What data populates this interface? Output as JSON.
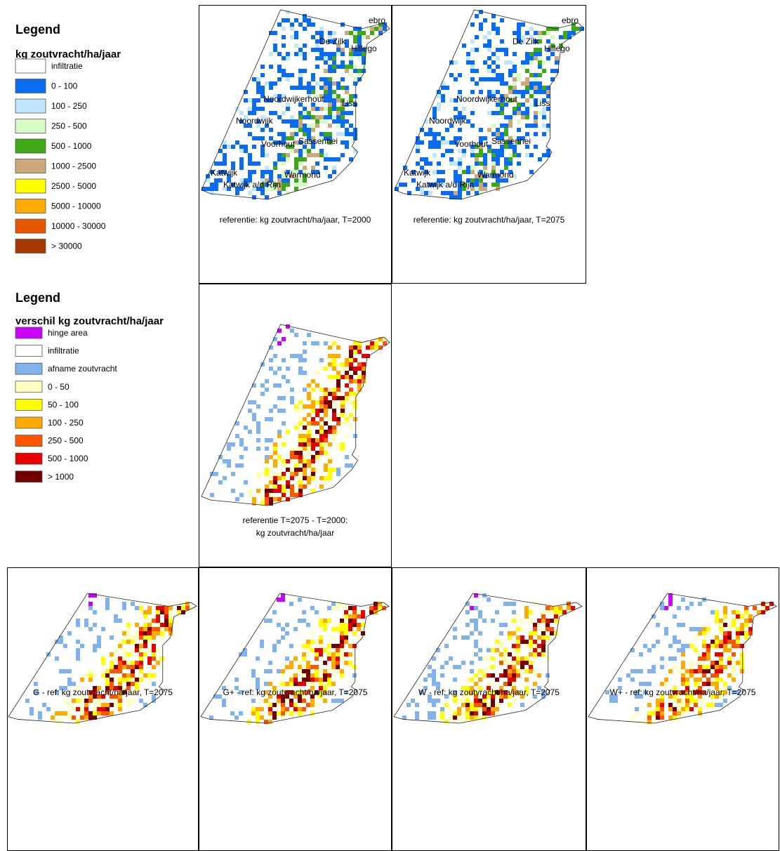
{
  "legends": [
    {
      "title": "Legend",
      "subtitle": "kg zoutvracht/ha/jaar",
      "items": [
        {
          "label": "infiltratie",
          "color": "#ffffff"
        },
        {
          "label": "0 - 100",
          "color": "#0a6cf0"
        },
        {
          "label": "100 - 250",
          "color": "#bfe6fa"
        },
        {
          "label": "250 - 500",
          "color": "#d6fbc4"
        },
        {
          "label": "500 - 1000",
          "color": "#3fa816"
        },
        {
          "label": "1000 - 2500",
          "color": "#cba978"
        },
        {
          "label": "2500 - 5000",
          "color": "#ffff00"
        },
        {
          "label": "5000 - 10000",
          "color": "#ffaa00"
        },
        {
          "label": "10000 - 30000",
          "color": "#e85500"
        },
        {
          "label": "> 30000",
          "color": "#a83800"
        }
      ]
    },
    {
      "title": "Legend",
      "subtitle": "verschil kg zoutvracht/ha/jaar",
      "items": [
        {
          "label": "hinge area",
          "color": "#cc00ff"
        },
        {
          "label": "infiltratie",
          "color": "#ffffff"
        },
        {
          "label": "afname zoutvracht",
          "color": "#80b3ee"
        },
        {
          "label": "0 - 50",
          "color": "#ffffc0"
        },
        {
          "label": "50 - 100",
          "color": "#ffff00"
        },
        {
          "label": "100 - 250",
          "color": "#ffaa00"
        },
        {
          "label": "250 - 500",
          "color": "#ff5500"
        },
        {
          "label": "500 - 1000",
          "color": "#e60000"
        },
        {
          "label": "> 1000",
          "color": "#730000"
        }
      ]
    }
  ],
  "places": [
    "ebro",
    "De Zilk",
    "Hillego",
    "Noordwijkerhout",
    "Liss",
    "Noordwijk",
    "Voorhout",
    "Sassenhei",
    "Katwijk",
    "Warmond",
    "Katwijk a/d Rijn"
  ],
  "maps": [
    {
      "caption": "referentie: kg zoutvracht/ha/jaar, T=2000"
    },
    {
      "caption": "referentie: kg zoutvracht/ha/jaar, T=2075"
    },
    {
      "caption": [
        "referentie T=2075 - T=2000:",
        "kg zoutvracht/ha/jaar"
      ]
    },
    {
      "caption": "G - ref: kg zoutvracht/ha/jaar, T=2075"
    },
    {
      "caption": "G+ - ref: kg zoutvracht/ha/jaar, T=2075"
    },
    {
      "caption": "W - ref: kg zoutvracht/ha/jaar, T=2075"
    },
    {
      "caption": "W+ - ref: kg zoutvracht/ha/jaar, T=2075"
    }
  ]
}
